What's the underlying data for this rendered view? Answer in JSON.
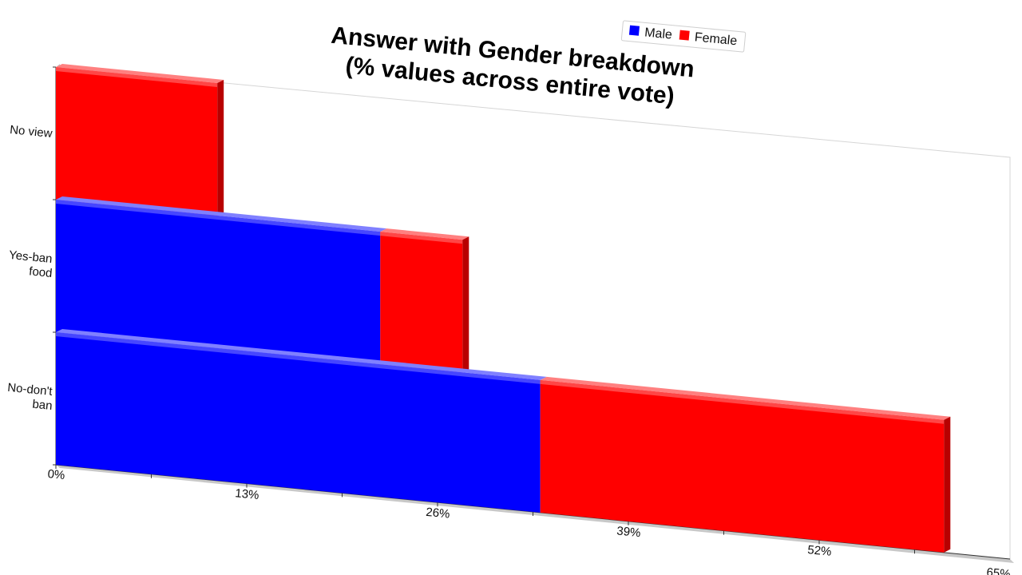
{
  "chart_data": {
    "type": "bar",
    "orientation": "horizontal",
    "stacked": true,
    "title_lines": [
      "Answer with Gender breakdown",
      "(% values across entire vote)"
    ],
    "categories": [
      "No view",
      "Yes-ban food",
      "No-don't ban"
    ],
    "category_label_lines": [
      [
        "No view"
      ],
      [
        "Yes-ban",
        "food"
      ],
      [
        "No-don't",
        "ban"
      ]
    ],
    "series": [
      {
        "name": "Male",
        "color": "#0000ff",
        "values": [
          0,
          22.1,
          33.0
        ]
      },
      {
        "name": "Female",
        "color": "#ff0000",
        "values": [
          11.0,
          5.6,
          27.5
        ]
      }
    ],
    "xlim": [
      0,
      65
    ],
    "xticks": [
      "0%",
      "13%",
      "26%",
      "39%",
      "52%",
      "65%"
    ],
    "grid": false,
    "legend_position": "top-right"
  }
}
